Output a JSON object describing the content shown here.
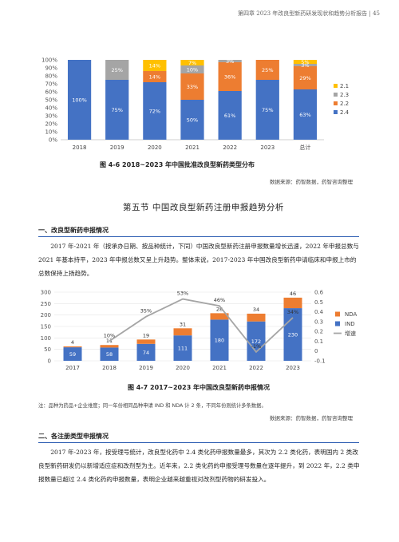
{
  "header": {
    "text": "第四章  2023 年改良型新药研发现状和趋势分析报告 | 45"
  },
  "figure1": {
    "caption": "图 4-6   2018~2023 年中国批准改良型新药类型分布",
    "source": "数据来源：药智数据，药智咨询整理"
  },
  "section": {
    "title": "第五节  中国改良型新药注册申报趋势分析"
  },
  "subsection1": {
    "title": "一、改良型新药申报情况",
    "paragraph": "2017 年-2021 年（按承办日期、按品种统计，下同）中国改良型新药注册申报数量增长迅速，2022 年申报总数与 2021 年基本持平，2023 年申报总数又呈上升趋势。整体来说，2017-2023 年中国改良型新药申请临床和申报上市的总数保持上扬趋势。"
  },
  "figure2": {
    "caption": "图 4-7   2017~2023 年中国改良型新药申报情况",
    "note": "注：品种为药品+企业维度；同一年份相同品种申请 IND 和 NDA 计 2 条，不同年份则统计多条数据。",
    "source": "数据来源：药智数据，药智咨询整理"
  },
  "subsection2": {
    "title": "二、各注册类型申报情况",
    "paragraph": "2017 年-2023 年，按受理号统计，改良型化药中 2.4 类化药申报数量最多，其次为 2.2 类化药，表明国内 2 类改良型新药研发仍以新增适应症和改剂型为主。近年来，2.2 类化药的申报受理号数量在逐年提升，到 2022 年，2.2 类申报数量已超过 2.4 类化药的申报数量，表明企业越来越重视对改剂型药物的研发投入。"
  },
  "chart_data": [
    {
      "type": "bar",
      "stacked": true,
      "percent": true,
      "categories": [
        "2018",
        "2019",
        "2020",
        "2021",
        "2022",
        "2023",
        "总计"
      ],
      "series": [
        {
          "name": "2.4",
          "color": "#4472c4",
          "values": [
            100,
            75,
            72,
            50,
            61,
            75,
            63
          ]
        },
        {
          "name": "2.2",
          "color": "#ed7d31",
          "values": [
            0,
            0,
            14,
            33,
            36,
            25,
            29
          ]
        },
        {
          "name": "2.3",
          "color": "#a5a5a5",
          "values": [
            0,
            25,
            0,
            10,
            3,
            0,
            3
          ]
        },
        {
          "name": "2.1",
          "color": "#ffc000",
          "values": [
            0,
            0,
            14,
            7,
            0,
            0,
            5
          ]
        }
      ],
      "y_ticks": [
        "0%",
        "10%",
        "20%",
        "30%",
        "40%",
        "50%",
        "60%",
        "70%",
        "80%",
        "90%",
        "100%"
      ],
      "ylim": [
        0,
        100
      ],
      "legend_order": [
        "2.1",
        "2.3",
        "2.2",
        "2.4"
      ],
      "legend": "right",
      "grid": false
    },
    {
      "type": "bar+line",
      "stacked": true,
      "categories": [
        "2017",
        "2018",
        "2019",
        "2020",
        "2021",
        "2022",
        "2023"
      ],
      "series": [
        {
          "name": "IND",
          "color": "#4472c4",
          "values": [
            59,
            58,
            74,
            111,
            180,
            172,
            230
          ]
        },
        {
          "name": "NDA",
          "color": "#ed7d31",
          "values": [
            4,
            11,
            19,
            31,
            28,
            34,
            46
          ]
        },
        {
          "name": "增速",
          "color": "#a5a5a5",
          "axis": "right",
          "values": [
            null,
            0.1,
            0.35,
            0.53,
            0.46,
            -0.01,
            0.34
          ],
          "labels": [
            "",
            "10%",
            "35%",
            "53%",
            "46%",
            "-1%",
            "34%"
          ]
        }
      ],
      "y_left_ticks": [
        "0",
        "50",
        "100",
        "150",
        "200",
        "250",
        "300"
      ],
      "ylim_left": [
        0,
        300
      ],
      "y_right_ticks": [
        "-0.1",
        "0",
        "0.1",
        "0.2",
        "0.3",
        "0.4",
        "0.5",
        "0.6"
      ],
      "ylim_right": [
        -0.1,
        0.6
      ],
      "legend_order": [
        "NDA",
        "IND",
        "增速"
      ],
      "legend": "right",
      "grid": true
    }
  ]
}
